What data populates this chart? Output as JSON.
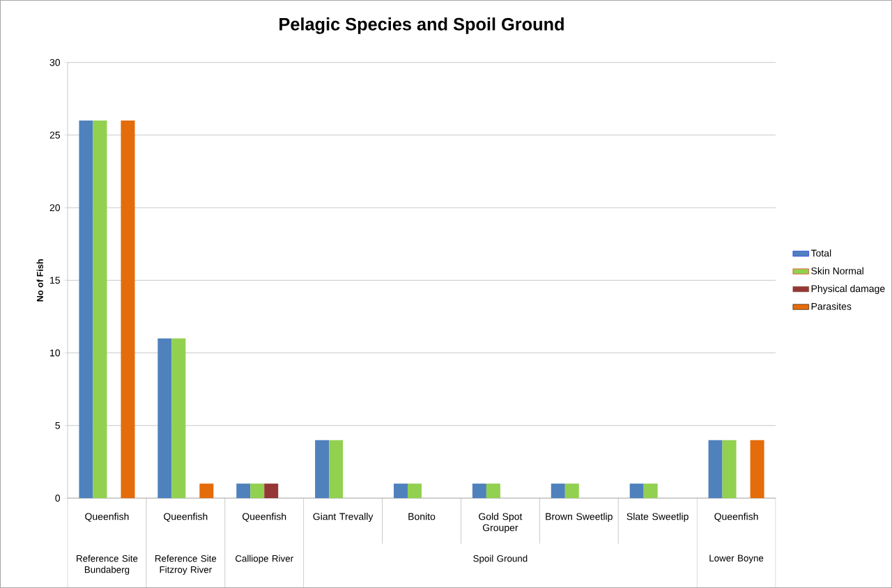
{
  "chart_data": {
    "type": "bar",
    "title": "Pelagic Species and Spoil Ground",
    "ylabel": "No of Fish",
    "categories": [
      "Queenfish",
      "Queenfish",
      "Queenfish",
      "Giant Trevally",
      "Bonito",
      "Gold Spot Grouper",
      "Brown Sweetlip",
      "Slate Sweetlip",
      "Queenfish"
    ],
    "series": [
      {
        "name": "Total",
        "color": "#4f81bd",
        "values": [
          26,
          11,
          1,
          4,
          1,
          1,
          1,
          1,
          4
        ]
      },
      {
        "name": "Skin Normal",
        "color": "#92d050",
        "values": [
          26,
          11,
          1,
          4,
          1,
          1,
          1,
          1,
          4
        ]
      },
      {
        "name": "Physical damage",
        "color": "#953735",
        "values": [
          0,
          0,
          1,
          0,
          0,
          0,
          0,
          0,
          0
        ]
      },
      {
        "name": "Parasites",
        "color": "#e46c0a",
        "values": [
          26,
          1,
          0,
          0,
          0,
          0,
          0,
          0,
          4
        ]
      }
    ],
    "annotations": [
      "Reference Site Bundaberg",
      "Reference Site Fitzroy River",
      "Calliope River",
      "Spoil Ground",
      "Lower Boyne"
    ],
    "ylim": [
      0,
      30
    ],
    "yticks": [
      0,
      5,
      10,
      15,
      20,
      25,
      30
    ],
    "grid": "y",
    "legend": "right"
  }
}
